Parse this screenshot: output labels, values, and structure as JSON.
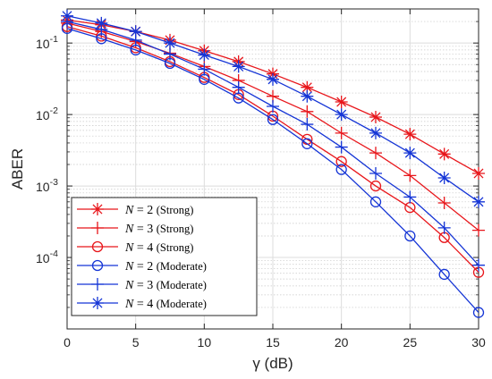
{
  "chart_data": {
    "type": "line",
    "xlabel": "γ (dB)",
    "ylabel": "ABER",
    "xlim": [
      0,
      30
    ],
    "ylim": [
      1e-05,
      0.3
    ],
    "yscale": "log",
    "grid": true,
    "legend_position": "bottom-left",
    "x": [
      0,
      2.5,
      5,
      7.5,
      10,
      12.5,
      15,
      17.5,
      20,
      22.5,
      25,
      27.5,
      30
    ],
    "x_ticks": [
      "0",
      "5",
      "10",
      "15",
      "20",
      "25",
      "30"
    ],
    "y_ticks": [
      "10",
      "10",
      "10",
      "10"
    ],
    "y_tick_exponents": [
      "-4",
      "-3",
      "-2",
      "-1"
    ],
    "series": [
      {
        "name": "N = 2 (Strong)",
        "name_parts": [
          "N",
          " = 2 ",
          "(Strong)"
        ],
        "color": "#e8161b",
        "marker": "star",
        "values": [
          0.21,
          0.18,
          0.145,
          0.11,
          0.078,
          0.055,
          0.037,
          0.024,
          0.015,
          0.0092,
          0.0053,
          0.0028,
          0.0015
        ]
      },
      {
        "name": "N = 3 (Strong)",
        "name_parts": [
          "N",
          " = 3 ",
          "(Strong)"
        ],
        "color": "#e8161b",
        "marker": "plus",
        "values": [
          0.19,
          0.145,
          0.105,
          0.072,
          0.047,
          0.03,
          0.018,
          0.011,
          0.0055,
          0.0029,
          0.0014,
          0.00058,
          0.00024
        ]
      },
      {
        "name": "N = 4 (Strong)",
        "name_parts": [
          "N",
          " = 4 ",
          "(Strong)"
        ],
        "color": "#e8161b",
        "marker": "circle",
        "values": [
          0.17,
          0.125,
          0.086,
          0.055,
          0.033,
          0.019,
          0.0095,
          0.0045,
          0.0022,
          0.001,
          0.0005,
          0.00019,
          6.2e-05
        ]
      },
      {
        "name": "N = 2 (Moderate)",
        "name_parts": [
          "N",
          " = 2 ",
          "(Moderate)"
        ],
        "color": "#1535d6",
        "marker": "circle",
        "values": [
          0.16,
          0.115,
          0.08,
          0.052,
          0.031,
          0.017,
          0.0085,
          0.0039,
          0.0017,
          0.0006,
          0.0002,
          5.8e-05,
          1.7e-05
        ]
      },
      {
        "name": "N = 3 (Moderate)",
        "name_parts": [
          "N",
          " = 3 ",
          "(Moderate)"
        ],
        "color": "#1535d6",
        "marker": "plus",
        "values": [
          0.2,
          0.155,
          0.11,
          0.07,
          0.043,
          0.024,
          0.013,
          0.0073,
          0.0035,
          0.0015,
          0.0007,
          0.00026,
          7.8e-05
        ]
      },
      {
        "name": "N = 4 (Moderate)",
        "name_parts": [
          "N",
          " = 4 ",
          "(Moderate)"
        ],
        "color": "#1535d6",
        "marker": "star",
        "values": [
          0.24,
          0.19,
          0.145,
          0.1,
          0.068,
          0.047,
          0.031,
          0.018,
          0.01,
          0.0055,
          0.0029,
          0.0013,
          0.0006
        ]
      }
    ]
  }
}
